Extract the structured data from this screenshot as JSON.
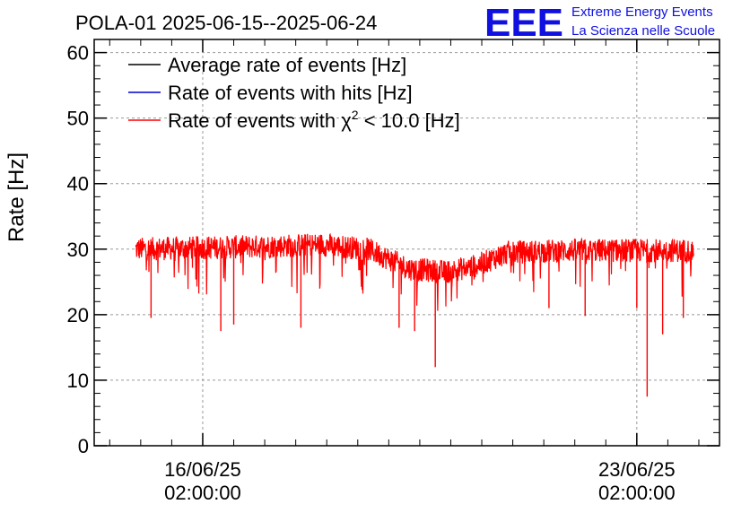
{
  "header": {
    "title": "POLA-01 2025-06-15--2025-06-24",
    "logo": "EEE",
    "org_line1": "Extreme Energy Events",
    "org_line2": "La Scienza nelle Scuole"
  },
  "chart_data": {
    "type": "line",
    "title": "POLA-01 2025-06-15--2025-06-24",
    "xlabel": "",
    "ylabel": "Rate [Hz]",
    "ylim": [
      0,
      62
    ],
    "yticks": [
      0,
      10,
      20,
      30,
      40,
      50,
      60
    ],
    "xlim": [
      "2025-06-14T08:00",
      "2025-06-24T10:00"
    ],
    "xticks": [
      {
        "x": "2025-06-16T02:00",
        "line1": "16/06/25",
        "line2": "02:00:00"
      },
      {
        "x": "2025-06-23T02:00",
        "line1": "23/06/25",
        "line2": "02:00:00"
      }
    ],
    "grid": true,
    "legend_position": "top-left",
    "series": [
      {
        "name": "Average rate of events [Hz]",
        "color": "#000000",
        "mean_profile": []
      },
      {
        "name": "Rate of events with hits [Hz]",
        "color": "#0000cc",
        "mean_profile": []
      },
      {
        "name": "Rate of events with χ² < 10.0 [Hz]",
        "name_prefix": "Rate of events with ",
        "name_chi": "χ",
        "name_sup": "2",
        "name_suffix": " < 10.0 [Hz]",
        "color": "#ff0000",
        "mean_profile": [
          {
            "x": "2025-06-15T00:00",
            "y": 30.0
          },
          {
            "x": "2025-06-16T00:00",
            "y": 30.2
          },
          {
            "x": "2025-06-17T00:00",
            "y": 30.4
          },
          {
            "x": "2025-06-18T00:00",
            "y": 30.7
          },
          {
            "x": "2025-06-18T18:00",
            "y": 30.0
          },
          {
            "x": "2025-06-19T10:00",
            "y": 27.0
          },
          {
            "x": "2025-06-20T00:00",
            "y": 26.5
          },
          {
            "x": "2025-06-20T12:00",
            "y": 27.5
          },
          {
            "x": "2025-06-21T00:00",
            "y": 29.5
          },
          {
            "x": "2025-06-22T00:00",
            "y": 29.8
          },
          {
            "x": "2025-06-23T00:00",
            "y": 29.8
          },
          {
            "x": "2025-06-24T00:00",
            "y": 29.8
          }
        ],
        "dips": [
          {
            "x": "2025-06-15T06:00",
            "y": 19.5
          },
          {
            "x": "2025-06-16T09:00",
            "y": 17.5
          },
          {
            "x": "2025-06-16T14:00",
            "y": 18.5
          },
          {
            "x": "2025-06-17T16:00",
            "y": 18.0
          },
          {
            "x": "2025-06-19T06:00",
            "y": 18.0
          },
          {
            "x": "2025-06-19T12:00",
            "y": 17.5
          },
          {
            "x": "2025-06-19T20:00",
            "y": 12.0
          },
          {
            "x": "2025-06-21T16:00",
            "y": 21.0
          },
          {
            "x": "2025-06-22T06:00",
            "y": 19.8
          },
          {
            "x": "2025-06-23T02:00",
            "y": 21.0
          },
          {
            "x": "2025-06-23T06:00",
            "y": 7.5
          },
          {
            "x": "2025-06-23T12:00",
            "y": 17.0
          },
          {
            "x": "2025-06-23T20:00",
            "y": 19.5
          }
        ]
      }
    ]
  }
}
